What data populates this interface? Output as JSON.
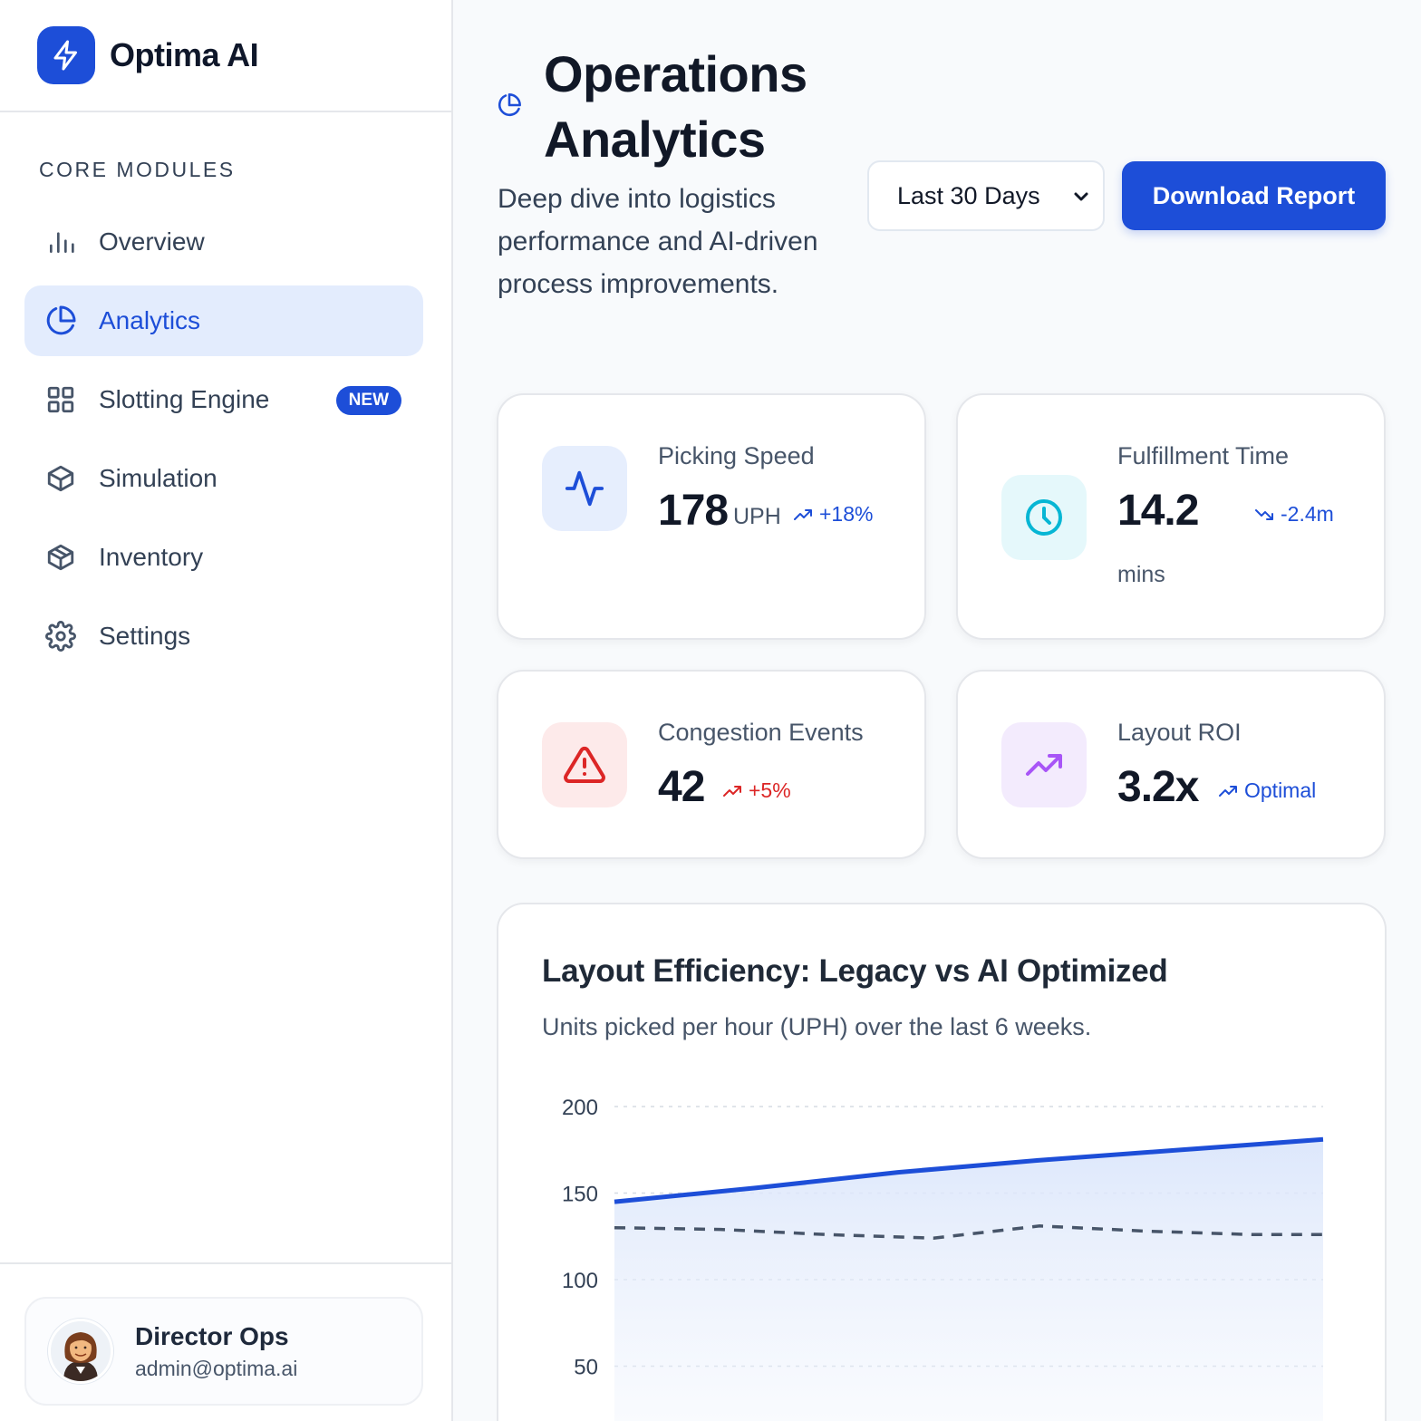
{
  "brand": {
    "name": "Optima AI"
  },
  "sidebar": {
    "section_label": "CORE MODULES",
    "items": [
      {
        "label": "Overview",
        "icon": "bar-chart-icon",
        "active": false
      },
      {
        "label": "Analytics",
        "icon": "pie-chart-icon",
        "active": true
      },
      {
        "label": "Slotting Engine",
        "icon": "grid-icon",
        "active": false,
        "badge": "NEW"
      },
      {
        "label": "Simulation",
        "icon": "box-icon",
        "active": false
      },
      {
        "label": "Inventory",
        "icon": "package-icon",
        "active": false
      },
      {
        "label": "Settings",
        "icon": "gear-icon",
        "active": false
      }
    ],
    "user": {
      "name": "Director Ops",
      "email": "admin@optima.ai"
    }
  },
  "header": {
    "title": "Operations Analytics",
    "description": "Deep dive into logistics performance and AI-driven process improvements.",
    "range_select": {
      "value": "Last 30 Days"
    },
    "download_label": "Download Report"
  },
  "stats": [
    {
      "label": "Picking Speed",
      "value": "178",
      "unit": "UPH",
      "delta": "+18%",
      "icon": "activity-icon",
      "color": "#1d4ed8"
    },
    {
      "label": "Fulfillment Time",
      "value": "14.2",
      "unit": "mins",
      "delta": "-2.4m",
      "icon": "clock-icon",
      "color": "#06b6d4"
    },
    {
      "label": "Congestion Events",
      "value": "42",
      "unit": "",
      "delta": "+5%",
      "icon": "alert-triangle-icon",
      "color": "#dc2626"
    },
    {
      "label": "Layout ROI",
      "value": "3.2x",
      "unit": "",
      "delta": "Optimal",
      "icon": "trending-up-icon",
      "color": "#a855f7"
    }
  ],
  "chart": {
    "title": "Layout Efficiency: Legacy vs AI Optimized",
    "subtitle": "Units picked per hour (UPH) over the last 6 weeks."
  },
  "chart_data": {
    "type": "area",
    "y_ticks": [
      200,
      150,
      100,
      50
    ],
    "ylim": [
      0,
      200
    ],
    "grid": true,
    "series": [
      {
        "style": "solid-area",
        "color": "#1d4ed8",
        "points": [
          [
            0,
            145
          ],
          [
            0.2,
            153
          ],
          [
            0.4,
            162
          ],
          [
            0.6,
            169
          ],
          [
            0.8,
            175
          ],
          [
            1,
            181
          ]
        ]
      },
      {
        "style": "dashed",
        "color": "#475569",
        "points": [
          [
            0,
            130
          ],
          [
            0.15,
            129
          ],
          [
            0.3,
            126
          ],
          [
            0.45,
            124
          ],
          [
            0.6,
            131
          ],
          [
            0.75,
            128
          ],
          [
            0.9,
            126
          ],
          [
            1,
            126
          ]
        ]
      }
    ]
  }
}
